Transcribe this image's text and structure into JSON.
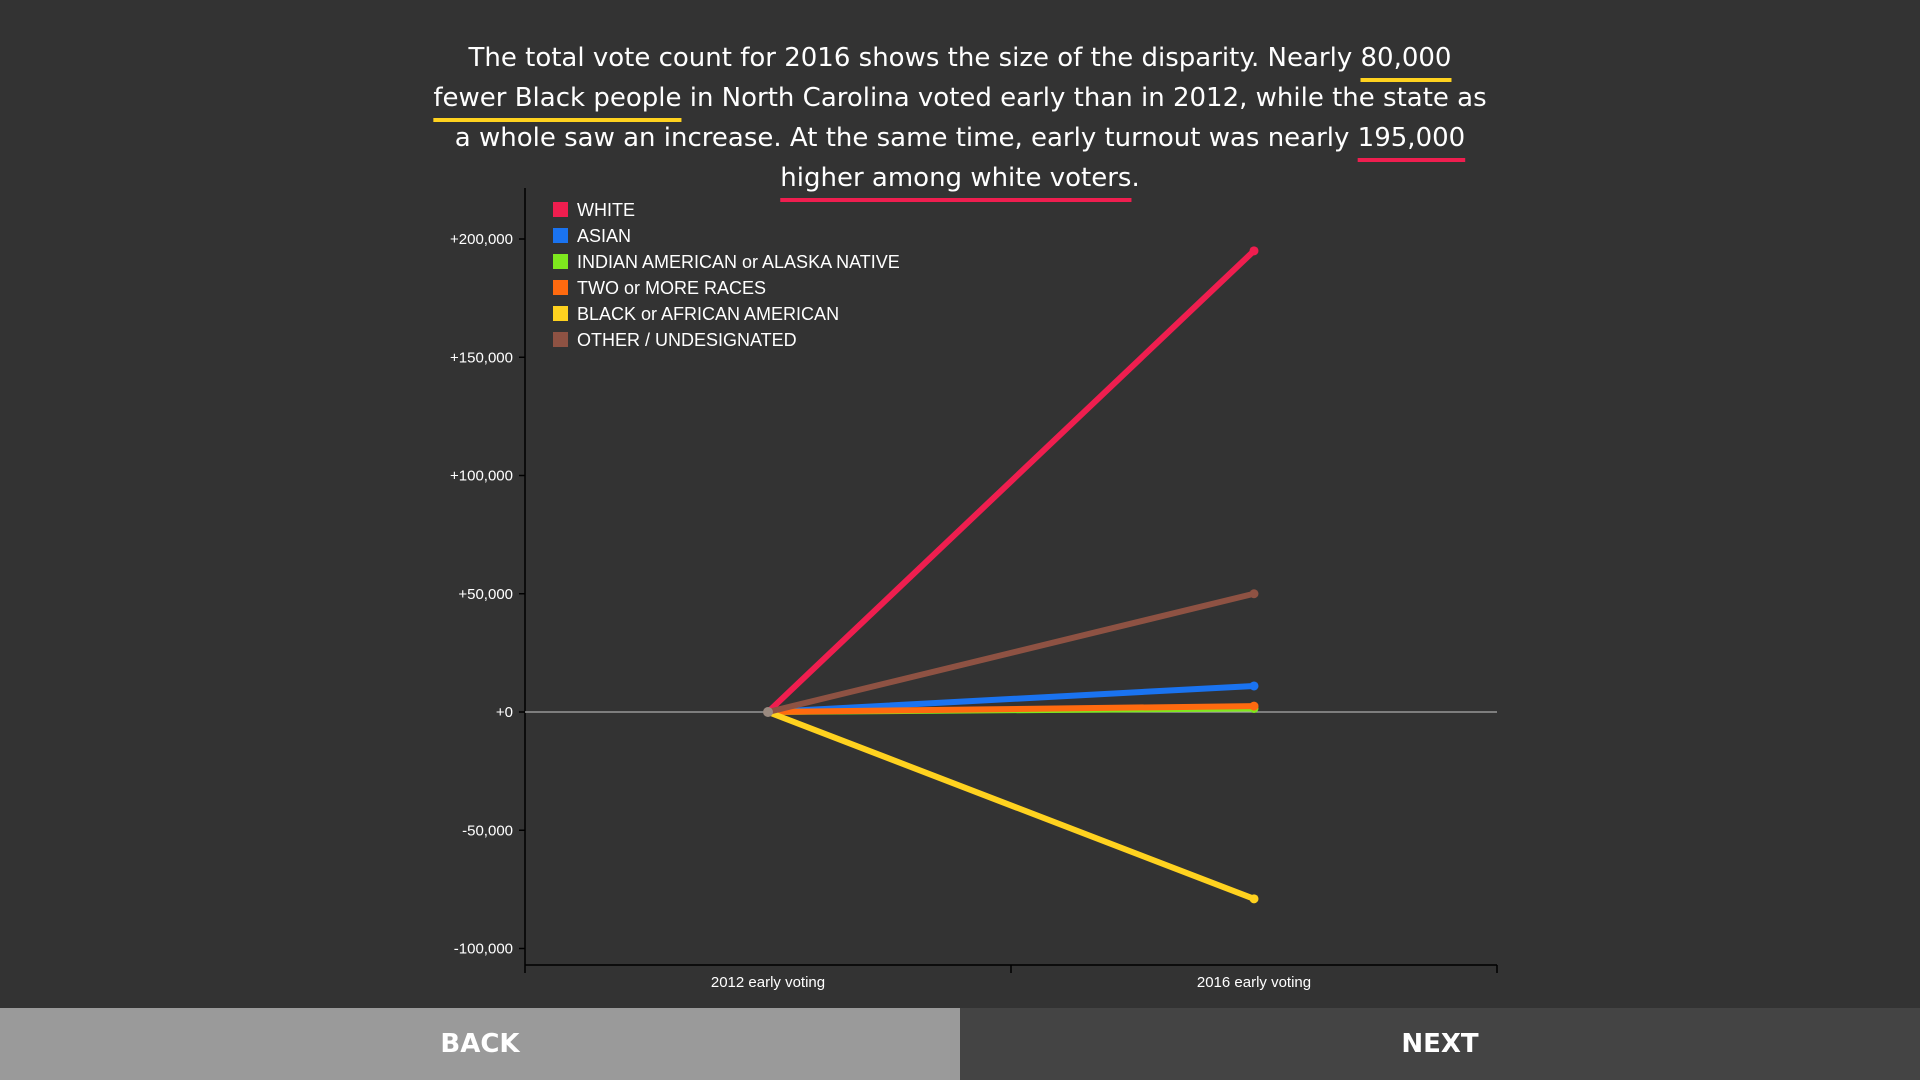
{
  "intro": {
    "p1": "The total vote count for 2016 shows the size of the disparity. Nearly ",
    "h1": "80,000 fewer Black people",
    "p2": " in North Carolina voted early than in 2012, while the state as a whole saw an increase. At the same time, early turnout was nearly ",
    "h2": "195,000 higher among white voters",
    "p3": ".",
    "h1_color": "#ffd21f",
    "h2_color": "#ef1e4f"
  },
  "nav": {
    "back_label": "BACK",
    "next_label": "NEXT"
  },
  "chart_data": {
    "type": "line",
    "categories": [
      "2012 early voting",
      "2016 early voting"
    ],
    "ylim": [
      -105000,
      220000
    ],
    "yticks": [
      200000,
      150000,
      100000,
      50000,
      0,
      -50000,
      -100000
    ],
    "ytick_labels": [
      "+200,000",
      "+150,000",
      "+100,000",
      "+50,000",
      "+0",
      "-50,000",
      "-100,000"
    ],
    "legend_position": "top-left",
    "zero_line": true,
    "series": [
      {
        "name": "WHITE",
        "color": "#ef1e4f",
        "values": [
          0,
          195000
        ]
      },
      {
        "name": "ASIAN",
        "color": "#1a73f0",
        "values": [
          0,
          11000
        ]
      },
      {
        "name": "INDIAN AMERICAN or ALASKA NATIVE",
        "color": "#7ee81e",
        "values": [
          0,
          1500
        ]
      },
      {
        "name": "TWO or MORE RACES",
        "color": "#ff6a0f",
        "values": [
          0,
          2500
        ]
      },
      {
        "name": "BLACK or AFRICAN AMERICAN",
        "color": "#ffd21f",
        "values": [
          0,
          -79000
        ]
      },
      {
        "name": "OTHER / UNDESIGNATED",
        "color": "#8e5243",
        "values": [
          0,
          50000
        ]
      }
    ]
  }
}
